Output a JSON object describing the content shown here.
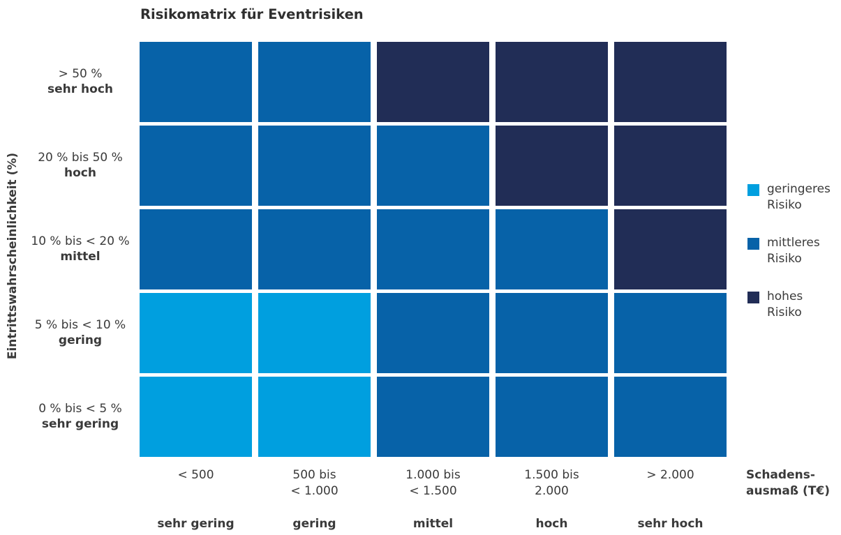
{
  "title": "Risikomatrix für Eventrisiken",
  "chart_data": {
    "type": "heatmap",
    "title": "Risikomatrix für Eventrisiken",
    "ylabel": "Eintrittswahrscheinlichkeit (%)",
    "xlabel_lines": [
      "Schadens-",
      "ausmaß (T€)"
    ],
    "rows": [
      {
        "range": "> 50 %",
        "name": "sehr hoch"
      },
      {
        "range": "20 % bis 50 %",
        "name": "hoch"
      },
      {
        "range": "10 % bis < 20 %",
        "name": "mittel"
      },
      {
        "range": "5 % bis < 10 %",
        "name": "gering"
      },
      {
        "range": "0 % bis < 5 %",
        "name": "sehr gering"
      }
    ],
    "columns": [
      {
        "range_lines": [
          "< 500"
        ],
        "name": "sehr gering"
      },
      {
        "range_lines": [
          "500 bis",
          "< 1.000"
        ],
        "name": "gering"
      },
      {
        "range_lines": [
          "1.000 bis",
          "< 1.500"
        ],
        "name": "mittel"
      },
      {
        "range_lines": [
          "1.500 bis",
          "2.000"
        ],
        "name": "hoch"
      },
      {
        "range_lines": [
          "> 2.000"
        ],
        "name": "sehr hoch"
      }
    ],
    "levels": [
      {
        "key": "geringeres",
        "label_lines": [
          "geringeres",
          "Risiko"
        ],
        "color": "#009fdf"
      },
      {
        "key": "mittleres",
        "label_lines": [
          "mittleres",
          "Risiko"
        ],
        "color": "#0762a8"
      },
      {
        "key": "hohes",
        "label_lines": [
          "hohes",
          "Risiko"
        ],
        "color": "#212d56"
      }
    ],
    "matrix": [
      [
        "mittleres",
        "mittleres",
        "hohes",
        "hohes",
        "hohes"
      ],
      [
        "mittleres",
        "mittleres",
        "mittleres",
        "hohes",
        "hohes"
      ],
      [
        "mittleres",
        "mittleres",
        "mittleres",
        "mittleres",
        "hohes"
      ],
      [
        "geringeres",
        "geringeres",
        "mittleres",
        "mittleres",
        "mittleres"
      ],
      [
        "geringeres",
        "geringeres",
        "mittleres",
        "mittleres",
        "mittleres"
      ]
    ],
    "legend_position": "right"
  }
}
